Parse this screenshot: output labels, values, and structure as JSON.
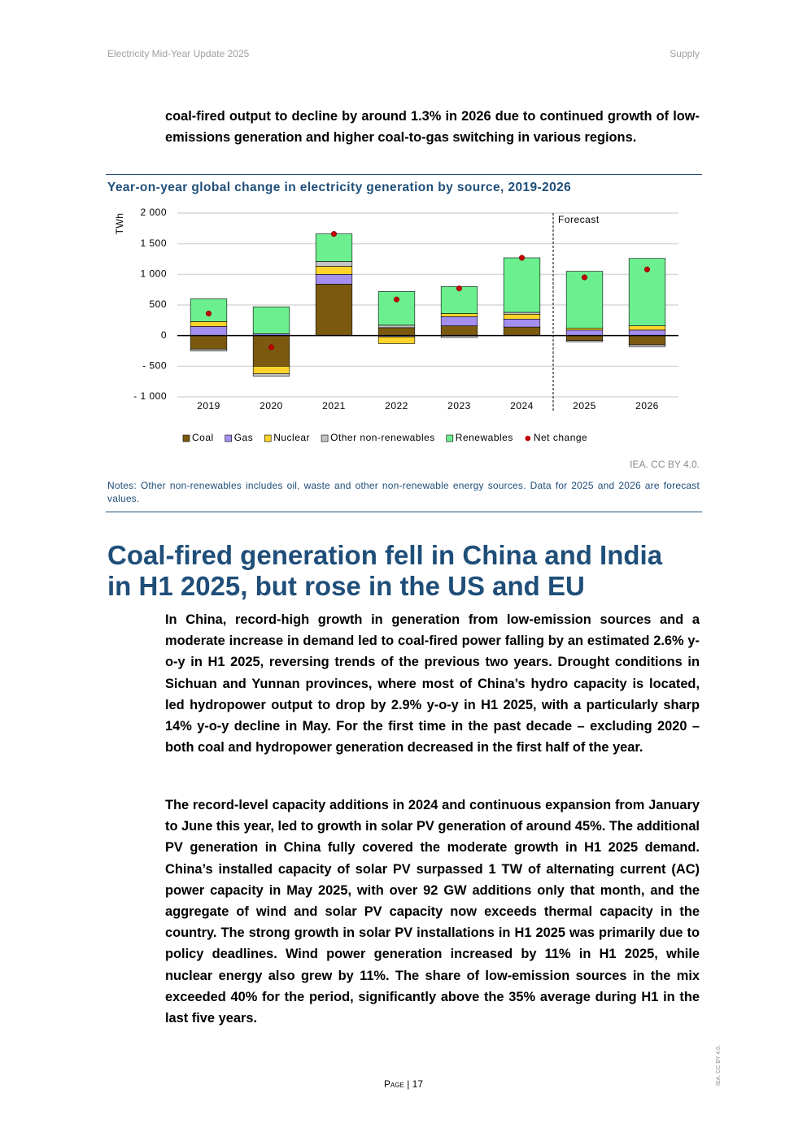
{
  "header": {
    "left": "Electricity Mid-Year Update 2025",
    "right": "Supply"
  },
  "intro": "coal-fired output to decline by around 1.3% in 2026 due to continued growth of low-emissions generation and higher coal-to-gas switching in various regions.",
  "chart_data": {
    "type": "bar",
    "stacked": true,
    "title": "Year-on-year global change in electricity generation by source, 2019-2026",
    "y_label": "TWh",
    "annotation": "Forecast",
    "categories": [
      "2019",
      "2020",
      "2021",
      "2022",
      "2023",
      "2024",
      "2025",
      "2026"
    ],
    "series": [
      {
        "name": "Coal",
        "color": "#7b5a10",
        "values": [
          -220,
          -500,
          840,
          130,
          160,
          140,
          -80,
          -150
        ]
      },
      {
        "name": "Gas",
        "color": "#a48ef0",
        "values": [
          150,
          30,
          160,
          -20,
          150,
          130,
          90,
          90
        ]
      },
      {
        "name": "Nuclear",
        "color": "#ffd42a",
        "values": [
          80,
          -120,
          130,
          -110,
          50,
          80,
          30,
          70
        ]
      },
      {
        "name": "Other non-renewables",
        "color": "#c4c4c4",
        "values": [
          -30,
          -40,
          80,
          40,
          -30,
          30,
          -20,
          -30
        ]
      },
      {
        "name": "Renewables",
        "color": "#6cf08f",
        "values": [
          370,
          440,
          450,
          550,
          440,
          890,
          930,
          1100
        ]
      },
      {
        "name": "Net change",
        "color": "#c00000",
        "type": "scatter",
        "values": [
          360,
          -190,
          1660,
          590,
          770,
          1270,
          950,
          1080
        ]
      }
    ],
    "ylim": [
      -1000,
      2000
    ],
    "yticks": [
      {
        "value": -1000,
        "label": "- 1 000"
      },
      {
        "value": -500,
        "label": "- 500"
      },
      0,
      500,
      {
        "value": 1000,
        "label": "1 000"
      },
      {
        "value": 1500,
        "label": "1 500"
      },
      {
        "value": 2000,
        "label": "2 000"
      }
    ],
    "grid": true,
    "legend": "bottom"
  },
  "figure": {
    "source": "IEA. CC BY 4.0.",
    "notes": "Notes: Other non-renewables includes oil, waste and other non-renewable energy sources. Data for 2025 and 2026 are forecast values."
  },
  "section": {
    "heading": "Coal-fired generation fell in China and India in H1 2025, but rose in the US and EU",
    "paragraphs": [
      [
        "In ",
        "China",
        ", record-high growth in generation from low-emission sources and a moderate increase in demand led to coal-fired power falling by an estimated 2.6% y-o-y in H1 2025, reversing trends of the previous two years. Drought conditions in Sichuan and Yunnan provinces, where most of China’s hydro capacity is located, led hydropower output to drop by 2.9% y-o-y in H1 2025, with a particularly sharp 14% y-o-y decline in May. For the first time in the past decade – excluding 2020 – both coal and hydropower generation decreased in the first half of the year."
      ],
      [
        "The record-level capacity additions in 2024 and continuous expansion from January to June this year, led to growth in solar PV generation of around 45%. The additional PV generation in China fully covered the moderate growth in H1 2025 demand. China’s installed capacity of solar PV surpassed 1 TW of alternating current (AC) power capacity in May 2025, with over 92 GW additions only that month, and the aggregate of wind and solar PV capacity now exceeds thermal capacity in the country. The strong growth in solar PV installations in H1 2025 was primarily due to policy deadlines. Wind power generation increased by 11% in H1 2025, while nuclear energy also grew by 11%. The share of low-emission sources in the mix exceeded 40% for the period, significantly above the 35% average during H1 in the last five years."
      ]
    ]
  },
  "footer": {
    "page": "Page | 17",
    "side": "IEA. CC BY 4.0."
  }
}
